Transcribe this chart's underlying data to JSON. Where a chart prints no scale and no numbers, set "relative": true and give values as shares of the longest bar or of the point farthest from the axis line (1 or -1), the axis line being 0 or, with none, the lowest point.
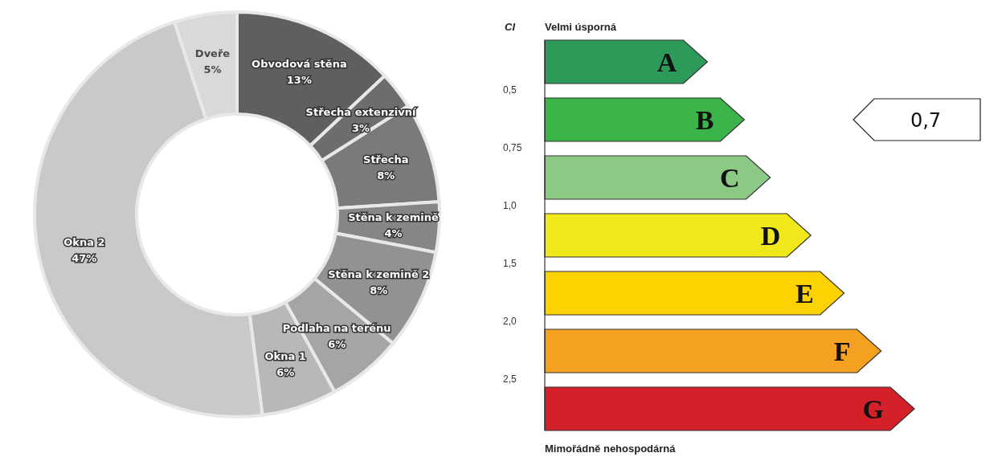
{
  "chart_data": [
    {
      "type": "donut",
      "categories": [
        "Obvodová stěna",
        "Střecha extenzivní",
        "Střecha",
        "Stěna k zemině",
        "Stěna k zemině 2",
        "Podlaha na terénu",
        "Okna 1",
        "Okna 2",
        "Dveře"
      ],
      "values": [
        13,
        3,
        8,
        4,
        8,
        6,
        6,
        47,
        5
      ],
      "value_labels": [
        "13%",
        "3%",
        "8%",
        "4%",
        "8%",
        "6%",
        "6%",
        "47%",
        "5%"
      ],
      "colors": [
        "#5f5f5f",
        "#6d6d6d",
        "#7a7a7a",
        "#868686",
        "#929292",
        "#a5a5a5",
        "#b8b8b8",
        "#c9c9c9",
        "#d9d9d9"
      ]
    },
    {
      "type": "bar",
      "orientation": "horizontal",
      "relative": true,
      "ylabel": "CI",
      "categories": [
        "A",
        "B",
        "C",
        "D",
        "E",
        "F",
        "G"
      ],
      "values": [
        0.44,
        0.54,
        0.61,
        0.72,
        0.81,
        0.91,
        1
      ],
      "colors": [
        "#2e9a5a",
        "#3cb44a",
        "#8cc984",
        "#f0e81a",
        "#fcd200",
        "#f4a021",
        "#d42028"
      ],
      "annotations": [
        "Velmi úsporná",
        "Mimořádně nehospodárná",
        "0,5",
        "0,75",
        "1,0",
        "1,5",
        "2,0",
        "2,5",
        "0,7"
      ]
    }
  ]
}
